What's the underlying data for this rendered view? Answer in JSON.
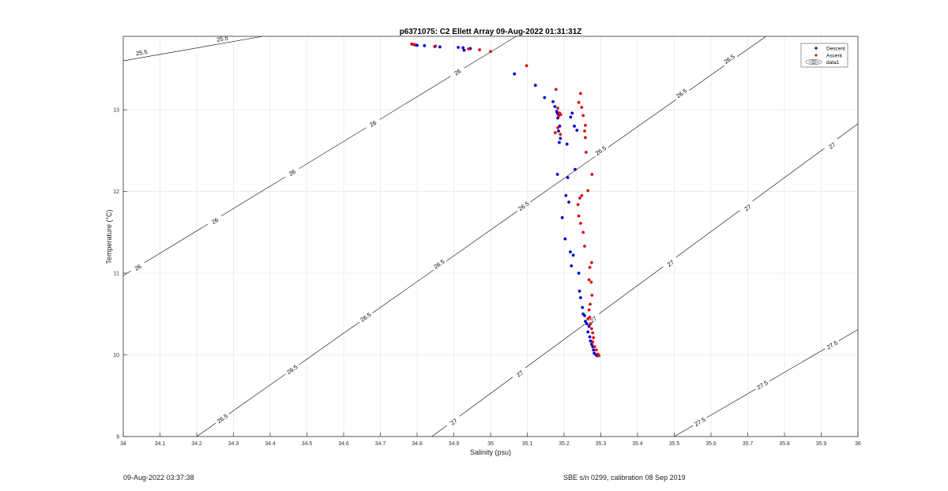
{
  "footer": {
    "timestamp": "09-Aug-2022 03:37:38",
    "calibration": "SBE s/n 0299, calibration 08 Sep 2019"
  },
  "chart_data": {
    "type": "scatter",
    "title": "p6371075: C2 Ellett Array 09-Aug-2022 01:31:31Z",
    "xlabel": "Salinity (psu)",
    "ylabel": "Temperature (°C)",
    "xlim": [
      34,
      36
    ],
    "ylim": [
      9,
      13.9
    ],
    "xticks": [
      "34",
      "34.1",
      "34.2",
      "34.3",
      "34.4",
      "34.5",
      "34.6",
      "34.7",
      "34.8",
      "34.9",
      "35",
      "35.1",
      "35.2",
      "35.3",
      "35.4",
      "35.5",
      "35.6",
      "35.7",
      "35.8",
      "35.9",
      "36"
    ],
    "yticks": [
      "9",
      "10",
      "11",
      "12",
      "13"
    ],
    "grid": true,
    "legend_position": "top-right",
    "legend": [
      "Descent",
      "Ascent",
      "data1"
    ],
    "colors": {
      "descent": "#0000cc",
      "ascent": "#dd1111",
      "contour": "#000000"
    },
    "contours": [
      {
        "level": "25.5",
        "p1": [
          34.0,
          13.6
        ],
        "p2": [
          34.38,
          13.9
        ],
        "labels": [
          [
            34.05,
            13.7
          ],
          [
            34.27,
            13.87
          ]
        ]
      },
      {
        "level": "26",
        "p1": [
          34.0,
          10.97
        ],
        "p2": [
          35.07,
          13.9
        ],
        "labels": [
          [
            34.04,
            11.07
          ],
          [
            34.25,
            11.64
          ],
          [
            34.46,
            12.23
          ],
          [
            34.68,
            12.83
          ],
          [
            34.91,
            13.46
          ]
        ]
      },
      {
        "level": "26.5",
        "p1": [
          34.2,
          9.0
        ],
        "p2": [
          35.75,
          13.9
        ],
        "labels": [
          [
            34.27,
            9.22
          ],
          [
            34.46,
            9.82
          ],
          [
            34.66,
            10.46
          ],
          [
            34.86,
            11.11
          ],
          [
            35.09,
            11.82
          ],
          [
            35.3,
            12.5
          ],
          [
            35.52,
            13.2
          ],
          [
            35.65,
            13.62
          ]
        ]
      },
      {
        "level": "27",
        "p1": [
          34.84,
          9.0
        ],
        "p2": [
          36.0,
          12.83
        ],
        "labels": [
          [
            34.9,
            9.18
          ],
          [
            35.08,
            9.77
          ],
          [
            35.28,
            10.43
          ],
          [
            35.49,
            11.12
          ],
          [
            35.7,
            11.8
          ],
          [
            35.93,
            12.56
          ]
        ]
      },
      {
        "level": "27.5",
        "p1": [
          35.5,
          9.0
        ],
        "p2": [
          36.0,
          10.31
        ],
        "labels": [
          [
            35.57,
            9.18
          ],
          [
            35.74,
            9.63
          ],
          [
            35.93,
            10.12
          ]
        ]
      }
    ],
    "series": [
      {
        "name": "Descent",
        "points": [
          [
            34.79,
            13.8
          ],
          [
            34.795,
            13.795
          ],
          [
            34.8,
            13.79
          ],
          [
            34.82,
            13.785
          ],
          [
            34.848,
            13.775
          ],
          [
            34.862,
            13.77
          ],
          [
            34.912,
            13.765
          ],
          [
            34.925,
            13.76
          ],
          [
            34.928,
            13.73
          ],
          [
            34.945,
            13.75
          ],
          [
            35.065,
            13.44
          ],
          [
            35.122,
            13.3
          ],
          [
            35.147,
            13.15
          ],
          [
            35.17,
            13.1
          ],
          [
            35.175,
            13.04
          ],
          [
            35.18,
            12.98
          ],
          [
            35.182,
            12.96
          ],
          [
            35.185,
            12.94
          ],
          [
            35.183,
            12.9
          ],
          [
            35.188,
            12.8
          ],
          [
            35.185,
            12.74
          ],
          [
            35.19,
            12.65
          ],
          [
            35.187,
            12.6
          ],
          [
            35.182,
            12.21
          ],
          [
            35.222,
            12.96
          ],
          [
            35.218,
            12.91
          ],
          [
            35.228,
            12.8
          ],
          [
            35.235,
            12.75
          ],
          [
            35.208,
            12.58
          ],
          [
            35.23,
            12.27
          ],
          [
            35.21,
            12.17
          ],
          [
            35.205,
            11.95
          ],
          [
            35.213,
            11.87
          ],
          [
            35.195,
            11.68
          ],
          [
            35.203,
            11.42
          ],
          [
            35.217,
            11.26
          ],
          [
            35.225,
            11.22
          ],
          [
            35.22,
            11.09
          ],
          [
            35.24,
            11.0
          ],
          [
            35.242,
            10.78
          ],
          [
            35.245,
            10.7
          ],
          [
            35.25,
            10.58
          ],
          [
            35.252,
            10.5
          ],
          [
            35.256,
            10.48
          ],
          [
            35.258,
            10.41
          ],
          [
            35.262,
            10.38
          ],
          [
            35.268,
            10.35
          ],
          [
            35.265,
            10.28
          ],
          [
            35.27,
            10.22
          ],
          [
            35.272,
            10.17
          ],
          [
            35.275,
            10.13
          ],
          [
            35.278,
            10.1
          ],
          [
            35.28,
            10.06
          ],
          [
            35.282,
            10.02
          ],
          [
            35.287,
            10.0
          ],
          [
            35.29,
            9.99
          ]
        ]
      },
      {
        "name": "Ascent",
        "points": [
          [
            34.785,
            13.805
          ],
          [
            34.792,
            13.8
          ],
          [
            34.85,
            13.78
          ],
          [
            34.94,
            13.745
          ],
          [
            34.97,
            13.735
          ],
          [
            35.0,
            13.715
          ],
          [
            35.098,
            13.54
          ],
          [
            35.178,
            13.25
          ],
          [
            35.183,
            13.02
          ],
          [
            35.188,
            12.96
          ],
          [
            35.191,
            12.94
          ],
          [
            35.185,
            12.92
          ],
          [
            35.176,
            12.72
          ],
          [
            35.183,
            12.78
          ],
          [
            35.19,
            12.7
          ],
          [
            35.245,
            13.2
          ],
          [
            35.24,
            13.09
          ],
          [
            35.248,
            13.03
          ],
          [
            35.252,
            12.93
          ],
          [
            35.258,
            12.81
          ],
          [
            35.256,
            12.74
          ],
          [
            35.258,
            12.66
          ],
          [
            35.26,
            12.48
          ],
          [
            35.276,
            12.21
          ],
          [
            35.265,
            12.01
          ],
          [
            35.248,
            11.95
          ],
          [
            35.243,
            11.92
          ],
          [
            35.238,
            11.84
          ],
          [
            35.24,
            11.7
          ],
          [
            35.245,
            11.61
          ],
          [
            35.252,
            11.5
          ],
          [
            35.256,
            11.33
          ],
          [
            35.275,
            11.13
          ],
          [
            35.27,
            11.07
          ],
          [
            35.268,
            10.92
          ],
          [
            35.274,
            10.89
          ],
          [
            35.276,
            10.73
          ],
          [
            35.271,
            10.62
          ],
          [
            35.268,
            10.55
          ],
          [
            35.265,
            10.44
          ],
          [
            35.27,
            10.46
          ],
          [
            35.272,
            10.38
          ],
          [
            35.275,
            10.32
          ],
          [
            35.278,
            10.27
          ],
          [
            35.28,
            10.21
          ],
          [
            35.278,
            10.16
          ],
          [
            35.283,
            10.1
          ],
          [
            35.288,
            10.06
          ],
          [
            35.292,
            10.01
          ],
          [
            35.295,
            9.99
          ]
        ]
      }
    ]
  }
}
